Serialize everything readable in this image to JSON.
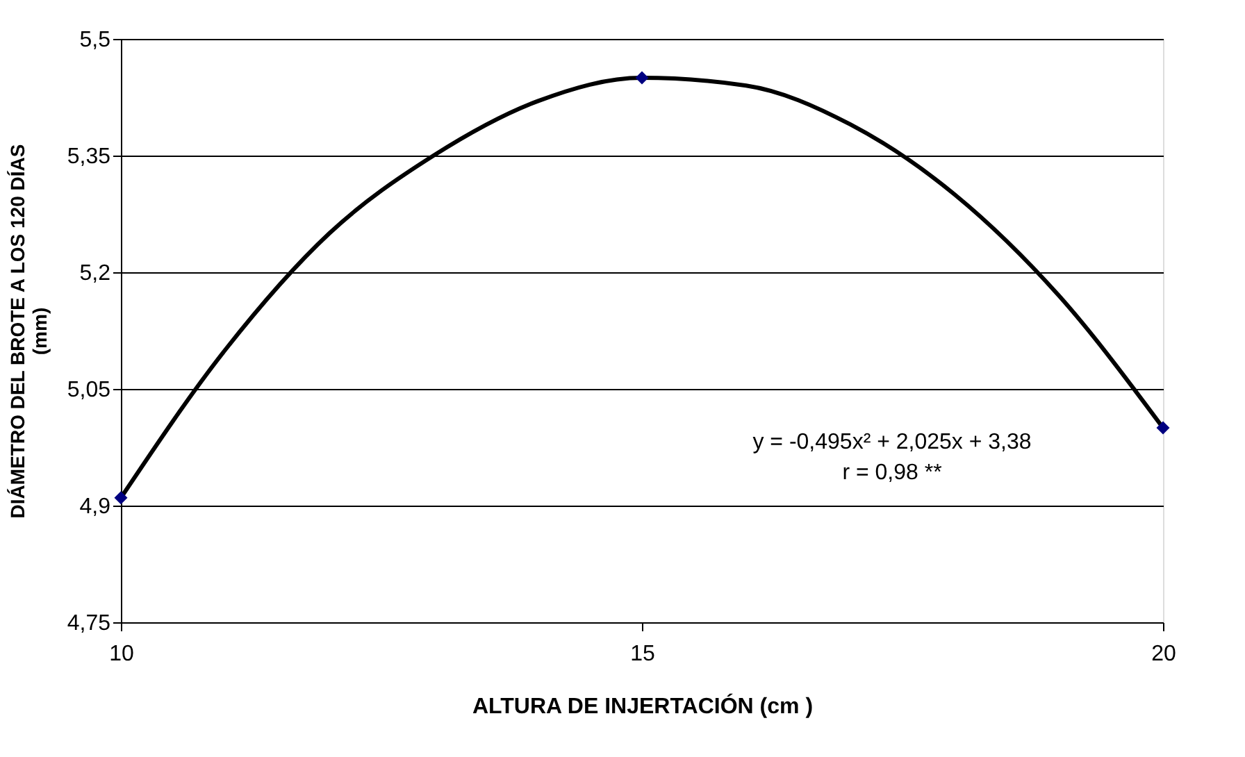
{
  "chart_data": {
    "type": "scatter",
    "xlabel": "ALTURA DE INJERTACIÓN (cm )",
    "ylabel": "DIÁMETRO DEL BROTE A LOS 120 DÍAS\n(mm)",
    "series": [
      {
        "type": "line",
        "color": "#000000",
        "marker": "none",
        "x": [
          10,
          11,
          12,
          13,
          14,
          15,
          16,
          17,
          18,
          19,
          20
        ],
        "values": [
          4.91,
          5.1,
          5.25,
          5.35,
          5.42,
          5.45,
          5.44,
          5.39,
          5.3,
          5.17,
          5.0
        ]
      },
      {
        "color": "#000080",
        "marker": "diamond",
        "x": [
          10,
          15,
          20
        ],
        "values": [
          4.91,
          5.45,
          5.0
        ]
      }
    ],
    "xlim": [
      10,
      20
    ],
    "xticks": [
      10,
      15,
      20
    ],
    "ylim": [
      4.75,
      5.5
    ],
    "yticks": [
      {
        "value": 4.75,
        "label": "4,75"
      },
      {
        "value": 4.9,
        "label": "4,9"
      },
      {
        "value": 5.05,
        "label": "5,05"
      },
      {
        "value": 5.2,
        "label": "5,2"
      },
      {
        "value": 5.35,
        "label": "5,35"
      },
      {
        "value": 5.5,
        "label": "5,5"
      }
    ],
    "grid": "y",
    "annotations": [
      "y = -0,495x² + 2,025x + 3,38",
      "r = 0,98 **"
    ]
  }
}
